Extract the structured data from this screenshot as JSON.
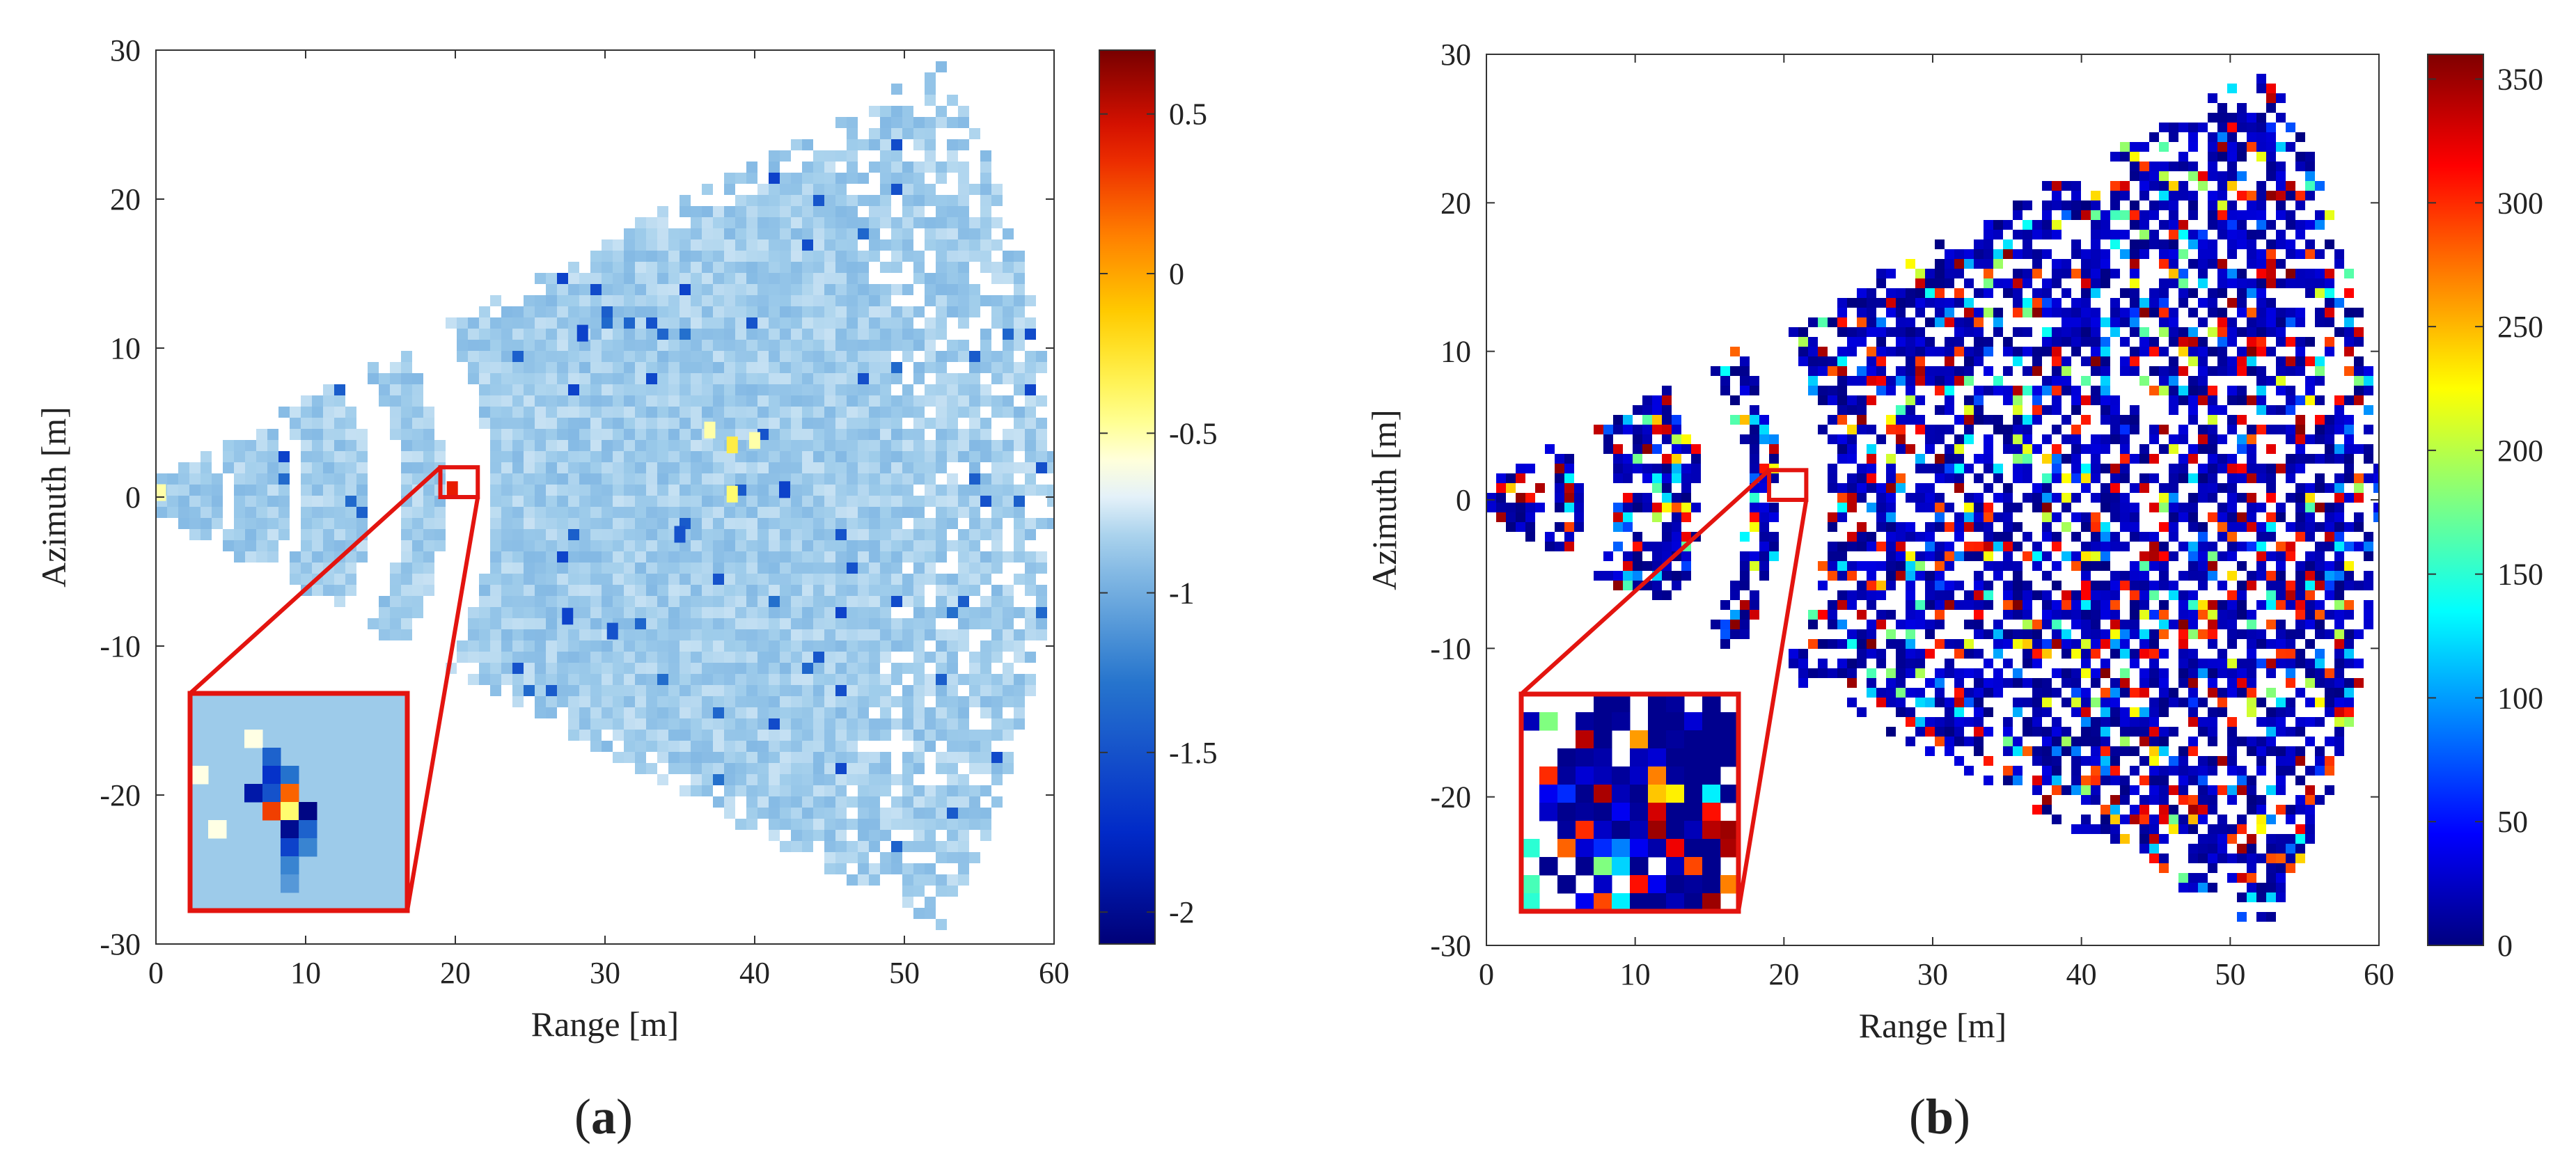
{
  "chart_data": [
    {
      "type": "heatmap",
      "panel_label": {
        "open": "(",
        "letter": "a",
        "close": ")"
      },
      "title": "",
      "xlabel": "Range [m]",
      "ylabel": "Azimuth [m]",
      "xlim": [
        0,
        60
      ],
      "ylim": [
        -30,
        30
      ],
      "xticks": [
        0,
        10,
        20,
        30,
        40,
        50,
        60
      ],
      "yticks": [
        -30,
        -20,
        -10,
        0,
        10,
        20,
        30
      ],
      "grid": false,
      "colormap": "jet-like with white band near -0.6",
      "colorbar": {
        "range": [
          -2.1,
          0.7
        ],
        "ticks": [
          -2,
          -1.5,
          -1,
          -0.5,
          0,
          0.5
        ]
      },
      "dominant_value": -0.85,
      "data_extent": {
        "origin": [
          0,
          0
        ],
        "fan_half_angle_deg": 28,
        "max_range": 60
      },
      "gaps": [
        [
          4.5,
          5.2
        ],
        [
          9.0,
          10.0
        ],
        [
          14.5,
          16.5
        ],
        [
          19.3,
          22.5
        ]
      ],
      "anomalies": [
        {
          "x": 0.3,
          "y": 0.3,
          "value": -0.5
        },
        {
          "x": 19.8,
          "y": 0.5,
          "value": 0.4
        },
        {
          "x": 28.5,
          "y": 11.0,
          "value": -1.6
        },
        {
          "x": 37.0,
          "y": 4.5,
          "value": -0.5
        },
        {
          "x": 38.5,
          "y": 3.5,
          "value": -0.3
        },
        {
          "x": 40.0,
          "y": 3.8,
          "value": -0.5
        },
        {
          "x": 38.5,
          "y": 0.2,
          "value": -0.4
        },
        {
          "x": 35.0,
          "y": -2.5,
          "value": -1.5
        },
        {
          "x": 27.5,
          "y": -8.0,
          "value": -1.6
        },
        {
          "x": 30.5,
          "y": -9.0,
          "value": -1.5
        },
        {
          "x": 42.0,
          "y": 0.5,
          "value": -1.6
        }
      ],
      "zoom_region": {
        "x": [
          19,
          21.5
        ],
        "y": [
          0,
          2
        ]
      },
      "zoom_inset": {
        "rows": 12,
        "cols": 12,
        "base_value": -0.85,
        "cells": [
          {
            "r": 2,
            "c": 3,
            "v": -0.6
          },
          {
            "r": 3,
            "c": 4,
            "v": -1.4
          },
          {
            "r": 4,
            "c": 0,
            "v": -0.6
          },
          {
            "r": 4,
            "c": 4,
            "v": -1.7
          },
          {
            "r": 4,
            "c": 5,
            "v": -1.3
          },
          {
            "r": 5,
            "c": 3,
            "v": -1.9
          },
          {
            "r": 5,
            "c": 4,
            "v": -1.5
          },
          {
            "r": 5,
            "c": 5,
            "v": 0.2
          },
          {
            "r": 6,
            "c": 4,
            "v": 0.3
          },
          {
            "r": 6,
            "c": 5,
            "v": -0.4
          },
          {
            "r": 6,
            "c": 6,
            "v": -2.05
          },
          {
            "r": 7,
            "c": 1,
            "v": -0.6
          },
          {
            "r": 7,
            "c": 5,
            "v": -2.0
          },
          {
            "r": 7,
            "c": 6,
            "v": -1.4
          },
          {
            "r": 8,
            "c": 5,
            "v": -1.6
          },
          {
            "r": 8,
            "c": 6,
            "v": -1.2
          },
          {
            "r": 9,
            "c": 5,
            "v": -1.2
          },
          {
            "r": 10,
            "c": 5,
            "v": -1.1
          }
        ]
      }
    },
    {
      "type": "heatmap",
      "panel_label": {
        "open": "(",
        "letter": "b",
        "close": ")"
      },
      "title": "",
      "xlabel": "Range [m]",
      "ylabel": "Azimuth [m]",
      "xlim": [
        0,
        60
      ],
      "ylim": [
        -30,
        30
      ],
      "xticks": [
        0,
        10,
        20,
        30,
        40,
        50,
        60
      ],
      "yticks": [
        -30,
        -20,
        -10,
        0,
        10,
        20,
        30
      ],
      "grid": false,
      "colormap": "jet",
      "colorbar": {
        "range": [
          0,
          360
        ],
        "ticks": [
          0,
          50,
          100,
          150,
          200,
          250,
          300,
          350
        ]
      },
      "dominant_value": 15,
      "data_extent": {
        "origin": [
          0,
          0
        ],
        "fan_half_angle_deg": 28,
        "max_range": 60
      },
      "gaps": [
        [
          4.0,
          4.8
        ],
        [
          6.5,
          8.8
        ],
        [
          14.5,
          17.5
        ],
        [
          19.8,
          23.0
        ]
      ],
      "zoom_region": {
        "x": [
          19,
          21.5
        ],
        "y": [
          0,
          2
        ]
      },
      "zoom_inset": {
        "rows": 12,
        "cols": 12,
        "cells": [
          {
            "r": 0,
            "c": 4,
            "v": 5
          },
          {
            "r": 0,
            "c": 5,
            "v": 5
          },
          {
            "r": 0,
            "c": 7,
            "v": 5
          },
          {
            "r": 0,
            "c": 8,
            "v": 10
          },
          {
            "r": 0,
            "c": 10,
            "v": 5
          },
          {
            "r": 1,
            "c": 0,
            "v": 20
          },
          {
            "r": 1,
            "c": 1,
            "v": 180
          },
          {
            "r": 1,
            "c": 3,
            "v": 10
          },
          {
            "r": 1,
            "c": 4,
            "v": 5
          },
          {
            "r": 1,
            "c": 5,
            "v": 10
          },
          {
            "r": 1,
            "c": 7,
            "v": 5
          },
          {
            "r": 1,
            "c": 8,
            "v": 5
          },
          {
            "r": 1,
            "c": 9,
            "v": 30
          },
          {
            "r": 1,
            "c": 10,
            "v": 5
          },
          {
            "r": 1,
            "c": 11,
            "v": 5
          },
          {
            "r": 2,
            "c": 3,
            "v": 340
          },
          {
            "r": 2,
            "c": 4,
            "v": 5
          },
          {
            "r": 2,
            "c": 6,
            "v": 260
          },
          {
            "r": 2,
            "c": 7,
            "v": 5
          },
          {
            "r": 2,
            "c": 8,
            "v": 10
          },
          {
            "r": 2,
            "c": 9,
            "v": 5
          },
          {
            "r": 2,
            "c": 10,
            "v": 5
          },
          {
            "r": 2,
            "c": 11,
            "v": 5
          },
          {
            "r": 3,
            "c": 2,
            "v": 5
          },
          {
            "r": 3,
            "c": 3,
            "v": 10
          },
          {
            "r": 3,
            "c": 4,
            "v": 15
          },
          {
            "r": 3,
            "c": 6,
            "v": 20
          },
          {
            "r": 3,
            "c": 7,
            "v": 30
          },
          {
            "r": 3,
            "c": 8,
            "v": 5
          },
          {
            "r": 3,
            "c": 9,
            "v": 5
          },
          {
            "r": 3,
            "c": 10,
            "v": 5
          },
          {
            "r": 3,
            "c": 11,
            "v": 5
          },
          {
            "r": 4,
            "c": 1,
            "v": 300
          },
          {
            "r": 4,
            "c": 2,
            "v": 10
          },
          {
            "r": 4,
            "c": 3,
            "v": 30
          },
          {
            "r": 4,
            "c": 4,
            "v": 20
          },
          {
            "r": 4,
            "c": 5,
            "v": 10
          },
          {
            "r": 4,
            "c": 6,
            "v": 25
          },
          {
            "r": 4,
            "c": 7,
            "v": 270
          },
          {
            "r": 4,
            "c": 8,
            "v": 10
          },
          {
            "r": 4,
            "c": 9,
            "v": 5
          },
          {
            "r": 4,
            "c": 10,
            "v": 5
          },
          {
            "r": 5,
            "c": 1,
            "v": 40
          },
          {
            "r": 5,
            "c": 2,
            "v": 60
          },
          {
            "r": 5,
            "c": 3,
            "v": 5
          },
          {
            "r": 5,
            "c": 4,
            "v": 345
          },
          {
            "r": 5,
            "c": 5,
            "v": 20
          },
          {
            "r": 5,
            "c": 6,
            "v": 5
          },
          {
            "r": 5,
            "c": 7,
            "v": 245
          },
          {
            "r": 5,
            "c": 8,
            "v": 230
          },
          {
            "r": 5,
            "c": 9,
            "v": 5
          },
          {
            "r": 5,
            "c": 10,
            "v": 130
          },
          {
            "r": 5,
            "c": 11,
            "v": 5
          },
          {
            "r": 6,
            "c": 1,
            "v": 25
          },
          {
            "r": 6,
            "c": 2,
            "v": 5
          },
          {
            "r": 6,
            "c": 3,
            "v": 10
          },
          {
            "r": 6,
            "c": 4,
            "v": 5
          },
          {
            "r": 6,
            "c": 5,
            "v": 40
          },
          {
            "r": 6,
            "c": 6,
            "v": 10
          },
          {
            "r": 6,
            "c": 7,
            "v": 330
          },
          {
            "r": 6,
            "c": 8,
            "v": 5
          },
          {
            "r": 6,
            "c": 9,
            "v": 5
          },
          {
            "r": 6,
            "c": 10,
            "v": 310
          },
          {
            "r": 7,
            "c": 2,
            "v": 10
          },
          {
            "r": 7,
            "c": 3,
            "v": 300
          },
          {
            "r": 7,
            "c": 4,
            "v": 25
          },
          {
            "r": 7,
            "c": 5,
            "v": 5
          },
          {
            "r": 7,
            "c": 6,
            "v": 20
          },
          {
            "r": 7,
            "c": 7,
            "v": 350
          },
          {
            "r": 7,
            "c": 8,
            "v": 5
          },
          {
            "r": 7,
            "c": 9,
            "v": 20
          },
          {
            "r": 7,
            "c": 10,
            "v": 340
          },
          {
            "r": 7,
            "c": 11,
            "v": 350
          },
          {
            "r": 8,
            "c": 0,
            "v": 150
          },
          {
            "r": 8,
            "c": 2,
            "v": 280
          },
          {
            "r": 8,
            "c": 3,
            "v": 30
          },
          {
            "r": 8,
            "c": 4,
            "v": 60
          },
          {
            "r": 8,
            "c": 5,
            "v": 90
          },
          {
            "r": 8,
            "c": 6,
            "v": 40
          },
          {
            "r": 8,
            "c": 7,
            "v": 15
          },
          {
            "r": 8,
            "c": 8,
            "v": 320
          },
          {
            "r": 8,
            "c": 9,
            "v": 5
          },
          {
            "r": 8,
            "c": 10,
            "v": 5
          },
          {
            "r": 8,
            "c": 11,
            "v": 345
          },
          {
            "r": 9,
            "c": 1,
            "v": 5
          },
          {
            "r": 9,
            "c": 3,
            "v": 5
          },
          {
            "r": 9,
            "c": 4,
            "v": 180
          },
          {
            "r": 9,
            "c": 5,
            "v": 120
          },
          {
            "r": 9,
            "c": 6,
            "v": 5
          },
          {
            "r": 9,
            "c": 8,
            "v": 20
          },
          {
            "r": 9,
            "c": 9,
            "v": 290
          },
          {
            "r": 9,
            "c": 10,
            "v": 5
          },
          {
            "r": 10,
            "c": 0,
            "v": 160
          },
          {
            "r": 10,
            "c": 2,
            "v": 5
          },
          {
            "r": 10,
            "c": 4,
            "v": 25
          },
          {
            "r": 10,
            "c": 6,
            "v": 310
          },
          {
            "r": 10,
            "c": 7,
            "v": 40
          },
          {
            "r": 10,
            "c": 8,
            "v": 5
          },
          {
            "r": 10,
            "c": 9,
            "v": 10
          },
          {
            "r": 10,
            "c": 10,
            "v": 5
          },
          {
            "r": 10,
            "c": 11,
            "v": 270
          },
          {
            "r": 11,
            "c": 0,
            "v": 150
          },
          {
            "r": 11,
            "c": 3,
            "v": 40
          },
          {
            "r": 11,
            "c": 4,
            "v": 290
          },
          {
            "r": 11,
            "c": 5,
            "v": 130
          },
          {
            "r": 11,
            "c": 6,
            "v": 5
          },
          {
            "r": 11,
            "c": 7,
            "v": 5
          },
          {
            "r": 11,
            "c": 8,
            "v": 20
          },
          {
            "r": 11,
            "c": 9,
            "v": 5
          },
          {
            "r": 11,
            "c": 10,
            "v": 350
          }
        ]
      }
    }
  ]
}
